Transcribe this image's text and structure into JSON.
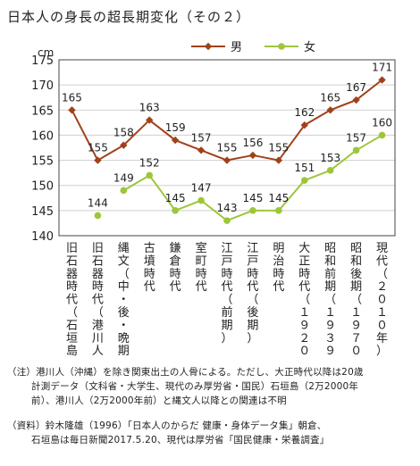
{
  "title": "日本人の身長の超長期変化（その２）",
  "chart_data": {
    "type": "line",
    "unit": "cm",
    "ylim": [
      140,
      175
    ],
    "yticks": [
      140,
      145,
      150,
      155,
      160,
      165,
      170,
      175
    ],
    "grid": true,
    "legend_position": "top-right",
    "categories": [
      "旧石器時代（石垣島）",
      "旧石器時代（港川人）",
      "縄文（中・後・晩期）",
      "古墳時代",
      "鎌倉時代",
      "室町時代",
      "江戸時代（前期）",
      "江戸時代（後期）",
      "明治時代",
      "大正時代（１９２０年）",
      "昭和前期（１９３９年）",
      "昭和後期（１９７０年）",
      "現代（２０１０年）"
    ],
    "series": [
      {
        "name": "男",
        "color": "#a0411c",
        "marker": "diamond",
        "values": [
          165,
          155,
          158,
          163,
          159,
          157,
          155,
          156,
          155,
          162,
          165,
          167,
          171
        ]
      },
      {
        "name": "女",
        "color": "#9ec63a",
        "marker": "circle",
        "values": [
          null,
          144,
          149,
          152,
          145,
          147,
          143,
          145,
          145,
          151,
          153,
          157,
          160
        ]
      }
    ]
  },
  "notes": {
    "chuu_1": "（注）港川人（沖縄）を除き関東出土の人骨による。ただし、大正時代以降は20歳",
    "chuu_2": "計測データ（文科省・大学生、現代のみ厚労省・国民）石垣島（2万2000年",
    "chuu_3": "前）、港川人（2万2000年前）と縄文人以降との関連は不明",
    "shiryou_1": "（資料）鈴木隆雄（1996）「日本人のからだ 健康・身体データ集」朝倉、",
    "shiryou_2": "石垣島は毎日新聞2017.5.20、現代は厚労省「国民健康・栄養調査」"
  }
}
